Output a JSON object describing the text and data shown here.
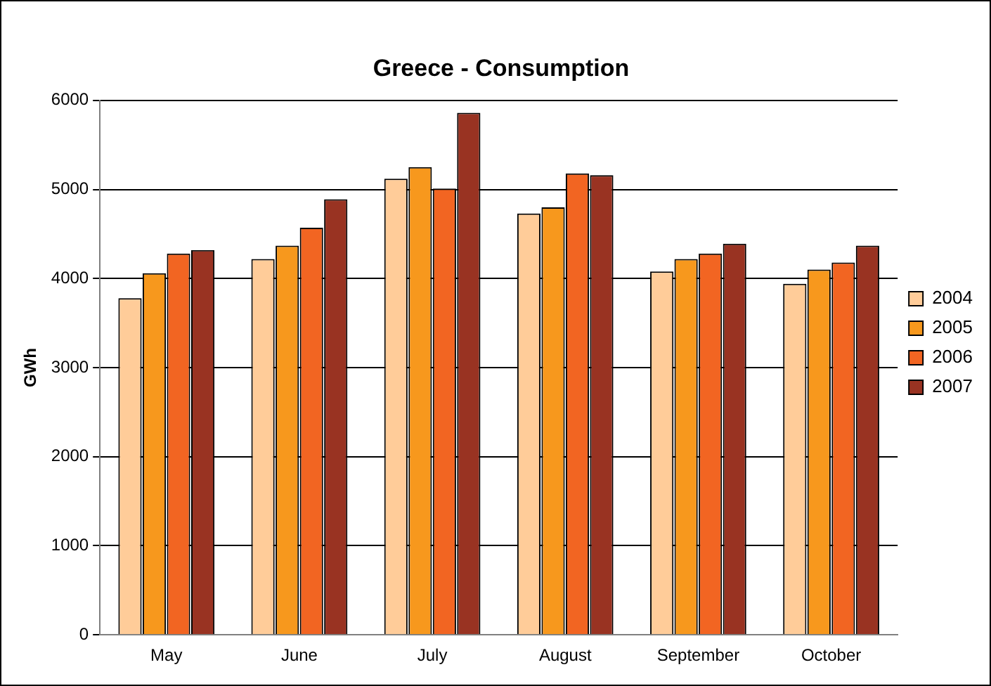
{
  "chart_data": {
    "type": "bar",
    "title": "Greece - Consumption",
    "ylabel": "GWh",
    "categories": [
      "May",
      "June",
      "July",
      "August",
      "September",
      "October"
    ],
    "series": [
      {
        "name": "2004",
        "color": "#ffcc99",
        "values": [
          3780,
          4220,
          5120,
          4730,
          4080,
          3940
        ]
      },
      {
        "name": "2005",
        "color": "#f7981d",
        "values": [
          4060,
          4370,
          5250,
          4800,
          4220,
          4100
        ]
      },
      {
        "name": "2006",
        "color": "#f26522",
        "values": [
          4280,
          4570,
          5010,
          5180,
          4280,
          4180
        ]
      },
      {
        "name": "2007",
        "color": "#993322",
        "values": [
          4320,
          4890,
          5860,
          5160,
          4390,
          4370
        ]
      }
    ],
    "ylim": [
      0,
      6000
    ],
    "yticks": [
      0,
      1000,
      2000,
      3000,
      4000,
      5000,
      6000
    ],
    "grid": "y",
    "legend": "right"
  }
}
